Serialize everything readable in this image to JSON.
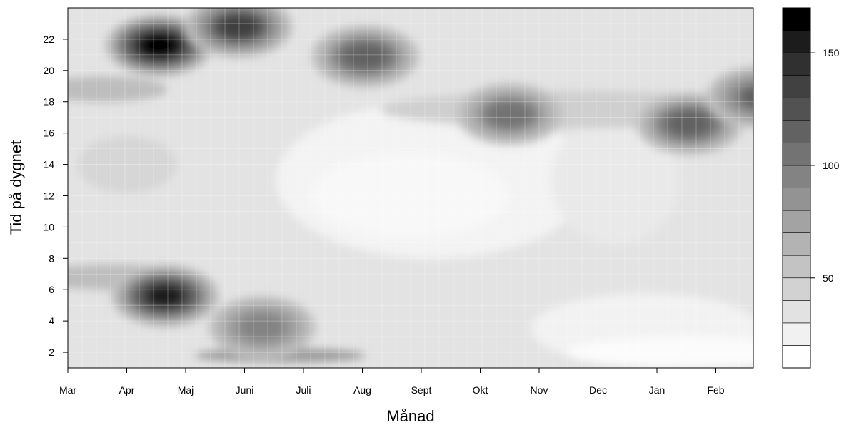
{
  "chart_data": {
    "type": "heatmap",
    "subtype": "filled-contour",
    "title": "",
    "xlabel": "Månad",
    "ylabel": "Tid på dygnet",
    "x_tick_labels": [
      "Mar",
      "Apr",
      "Maj",
      "Juni",
      "Juli",
      "Aug",
      "Sept",
      "Okt",
      "Nov",
      "Dec",
      "Jan",
      "Feb"
    ],
    "y_ticks": [
      2,
      4,
      6,
      8,
      10,
      12,
      14,
      16,
      18,
      20,
      22
    ],
    "ylim": [
      1,
      24
    ],
    "colorbar": {
      "ticks": [
        50,
        100,
        150
      ],
      "range": [
        10,
        170
      ],
      "levels": [
        10,
        20,
        30,
        40,
        50,
        60,
        70,
        80,
        90,
        100,
        110,
        120,
        130,
        140,
        150,
        160,
        170
      ],
      "colors": [
        "#ffffff",
        "#f1f1f1",
        "#e2e2e2",
        "#d2d2d2",
        "#c3c3c3",
        "#b3b3b3",
        "#a3a3a3",
        "#939393",
        "#838383",
        "#737373",
        "#626262",
        "#525252",
        "#414141",
        "#303030",
        "#1c1c1c",
        "#000000"
      ]
    },
    "grid": true,
    "hotspots": [
      {
        "month": 1.55,
        "hour": 21.6,
        "value": 165
      },
      {
        "month": 1.65,
        "hour": 5.6,
        "value": 150
      },
      {
        "month": 2.9,
        "hour": 22.8,
        "value": 135
      },
      {
        "month": 5.05,
        "hour": 20.9,
        "value": 115
      },
      {
        "month": 7.5,
        "hour": 17.2,
        "value": 105
      },
      {
        "month": 10.55,
        "hour": 16.6,
        "value": 115
      },
      {
        "month": 11.75,
        "hour": 18.3,
        "value": 110
      },
      {
        "month": 3.3,
        "hour": 3.6,
        "value": 95
      }
    ]
  }
}
